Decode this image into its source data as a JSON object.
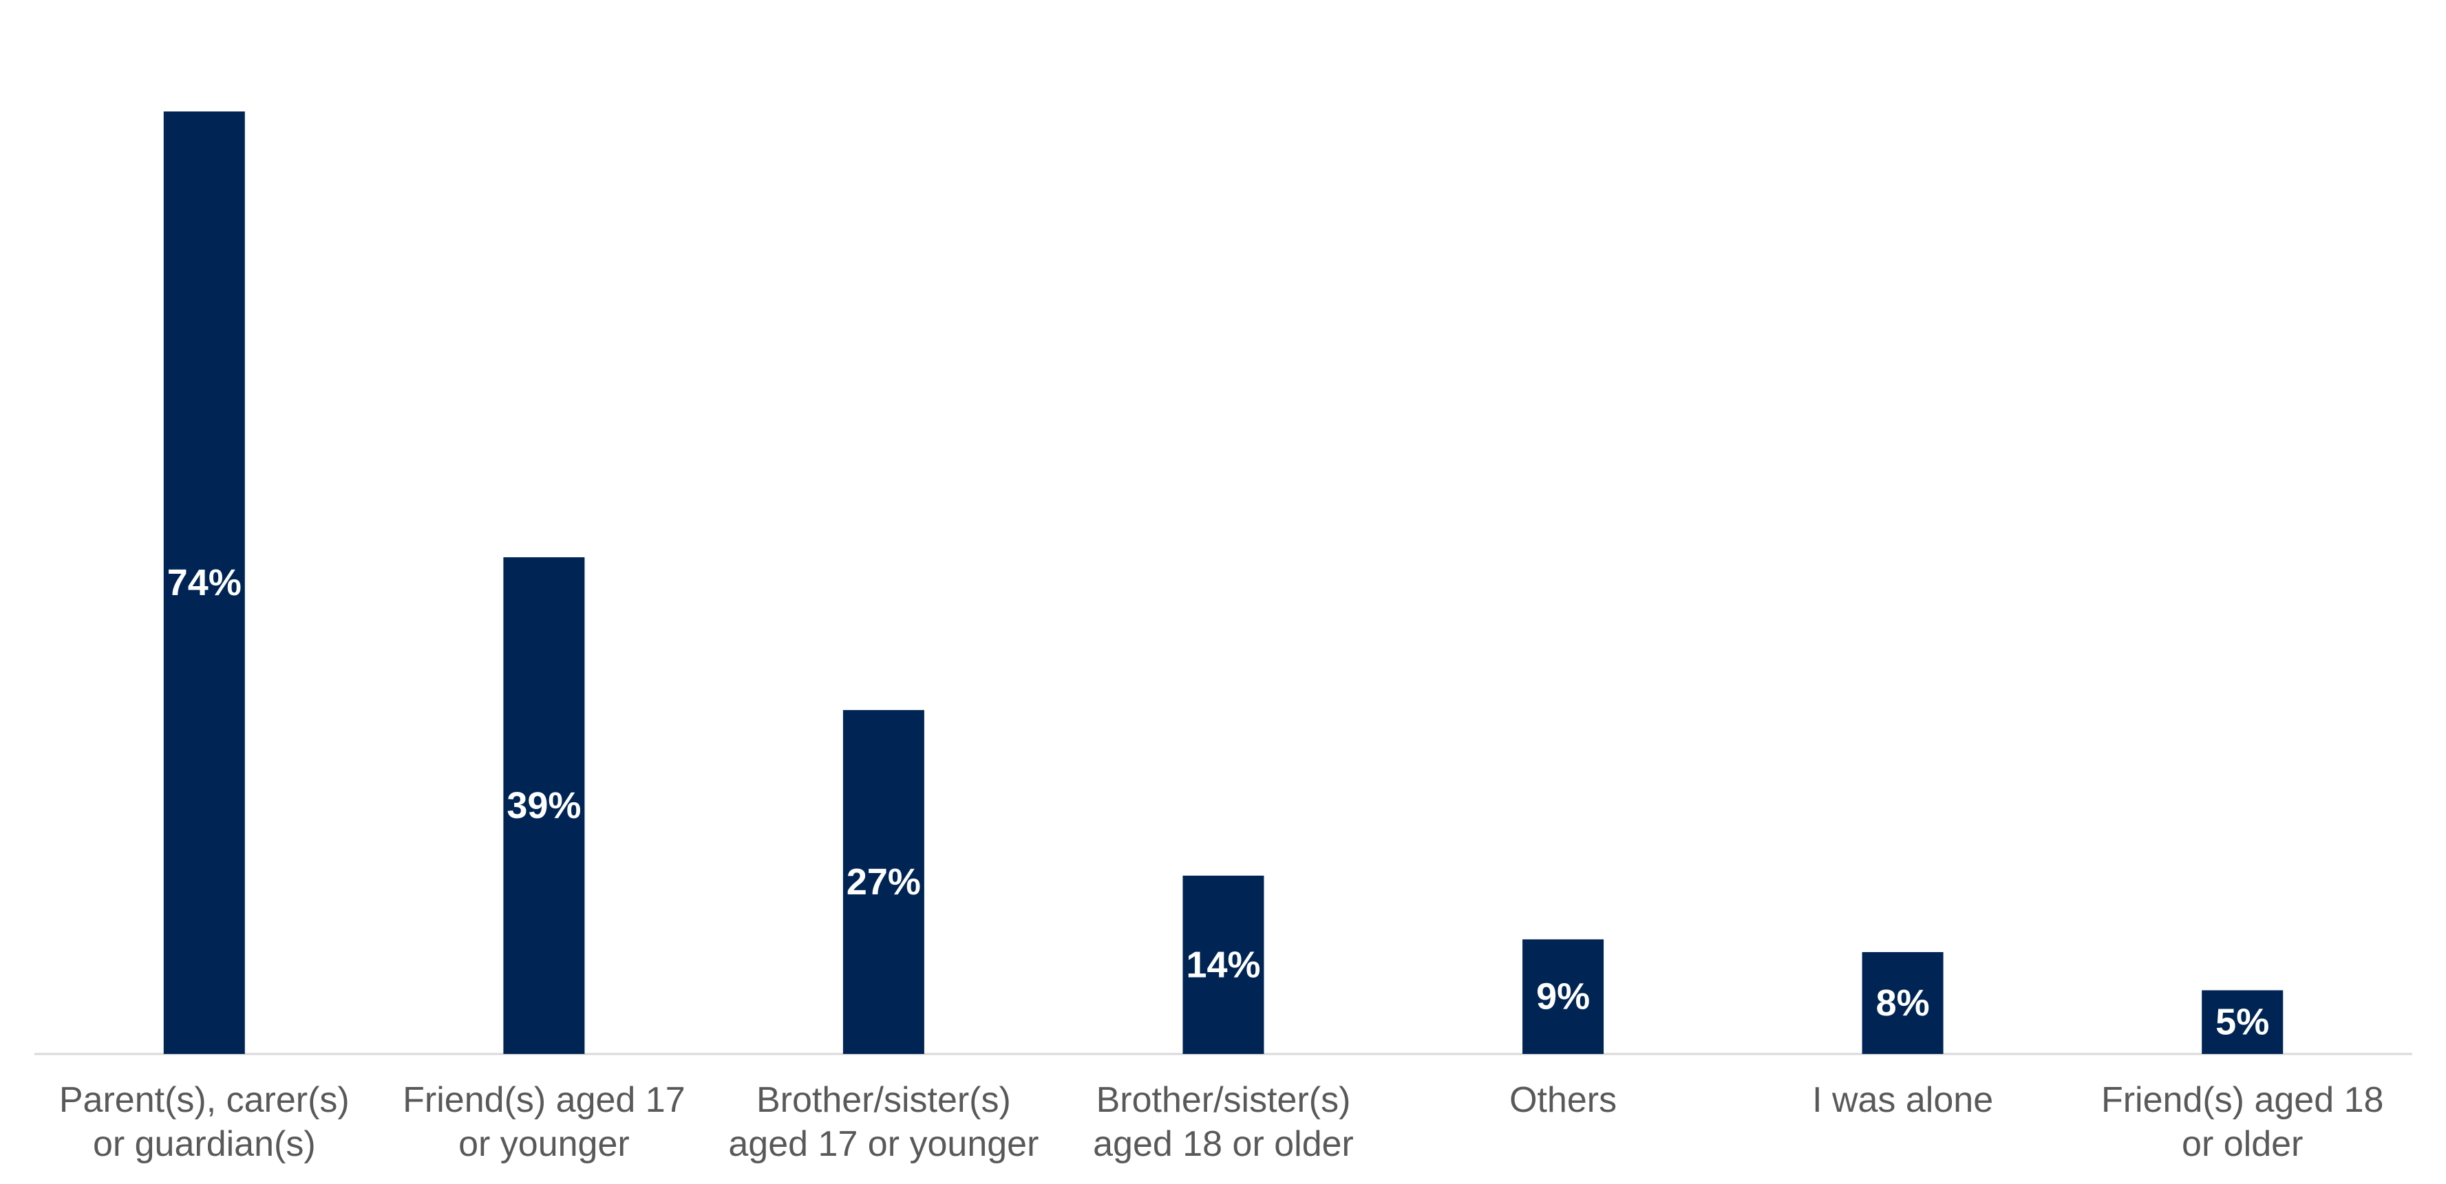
{
  "chart_data": {
    "type": "bar",
    "title": "",
    "xlabel": "",
    "ylabel": "",
    "categories": [
      [
        "Parent(s), carer(s)",
        "or guardian(s)"
      ],
      [
        "Friend(s) aged 17",
        "or younger"
      ],
      [
        "Brother/sister(s)",
        "aged 17 or younger"
      ],
      [
        "Brother/sister(s)",
        "aged 18 or older"
      ],
      [
        "Others"
      ],
      [
        "I was alone"
      ],
      [
        "Friend(s) aged 18",
        "or older"
      ]
    ],
    "values": [
      74,
      39,
      27,
      14,
      9,
      8,
      5
    ],
    "data_labels": [
      "74%",
      "39%",
      "27%",
      "14%",
      "9%",
      "8%",
      "5%"
    ],
    "ylim": [
      0,
      74
    ],
    "grid": false,
    "legend": "none",
    "colors": {
      "bar": "#002554",
      "axis": "#d9d9d9",
      "data_label": "#ffffff",
      "category_label": "#595959"
    }
  }
}
